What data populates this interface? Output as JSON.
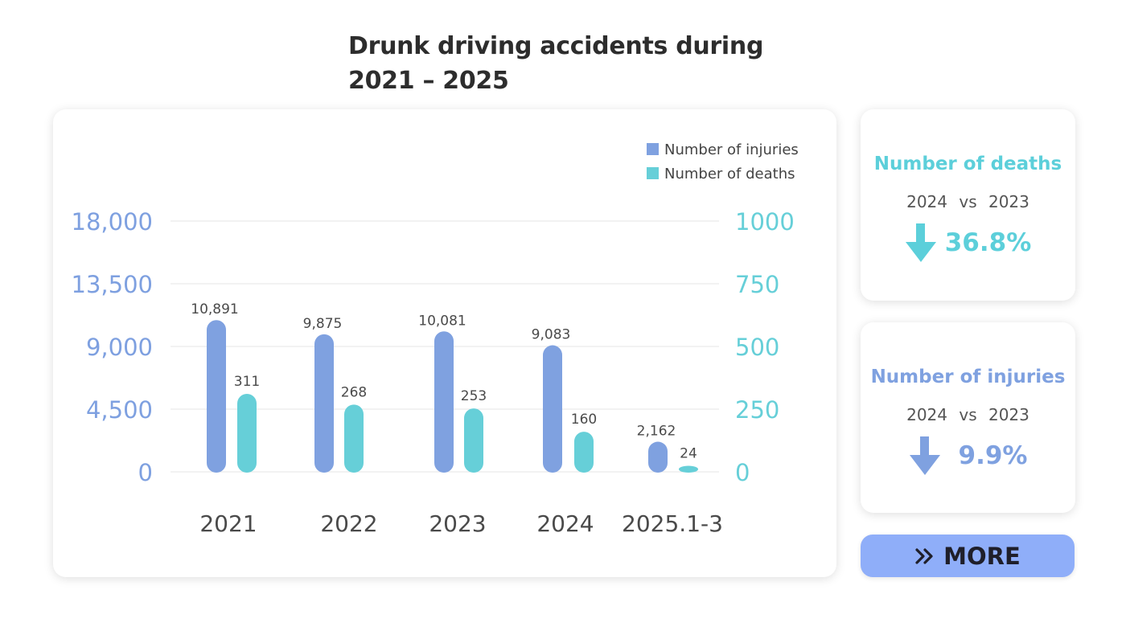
{
  "title_lines": [
    "Drunk driving accidents during",
    "2021 – 2025"
  ],
  "colors": {
    "injuries": "#7fa1e0",
    "deaths": "#66cfd8",
    "left_axis": "#7ea0e0",
    "right_axis": "#66cfd8",
    "category_text": "#4a4a4a",
    "grid": "#e6e6e6"
  },
  "chart_data": {
    "type": "bar",
    "categories": [
      "2021",
      "2022",
      "2023",
      "2024",
      "2025.1-3"
    ],
    "series": [
      {
        "name": "Number of injuries",
        "axis": "left",
        "values": [
          10891,
          9875,
          10081,
          9083,
          2162
        ],
        "labels": [
          "10,891",
          "9,875",
          "10,081",
          "9,083",
          "2,162"
        ]
      },
      {
        "name": "Number  of deaths",
        "axis": "right",
        "values": [
          311,
          268,
          253,
          160,
          24
        ],
        "labels": [
          "311",
          "268",
          "253",
          "160",
          "24"
        ]
      }
    ],
    "left_axis": {
      "ticks": [
        0,
        4500,
        9000,
        13500,
        18000
      ],
      "tick_labels": [
        "0",
        "4,500",
        "9,000",
        "13,500",
        "18,000"
      ],
      "ylim": [
        0,
        18000
      ]
    },
    "right_axis": {
      "ticks": [
        0,
        250,
        500,
        750,
        1000
      ],
      "tick_labels": [
        "0",
        "250",
        "500",
        "750",
        "1000"
      ],
      "ylim": [
        0,
        1000
      ]
    },
    "legend_position": "top-right",
    "grid": true
  },
  "deaths_card": {
    "title": "Number  of deaths",
    "comparison": "2024  vs  2023",
    "change": "36.8%",
    "direction": "down"
  },
  "injuries_card": {
    "title": "Number of injuries",
    "comparison": "2024  vs  2023",
    "change": "9.9%",
    "direction": "down"
  },
  "more_button": {
    "label": "MORE",
    "icon": "double-chevron-right-icon"
  }
}
